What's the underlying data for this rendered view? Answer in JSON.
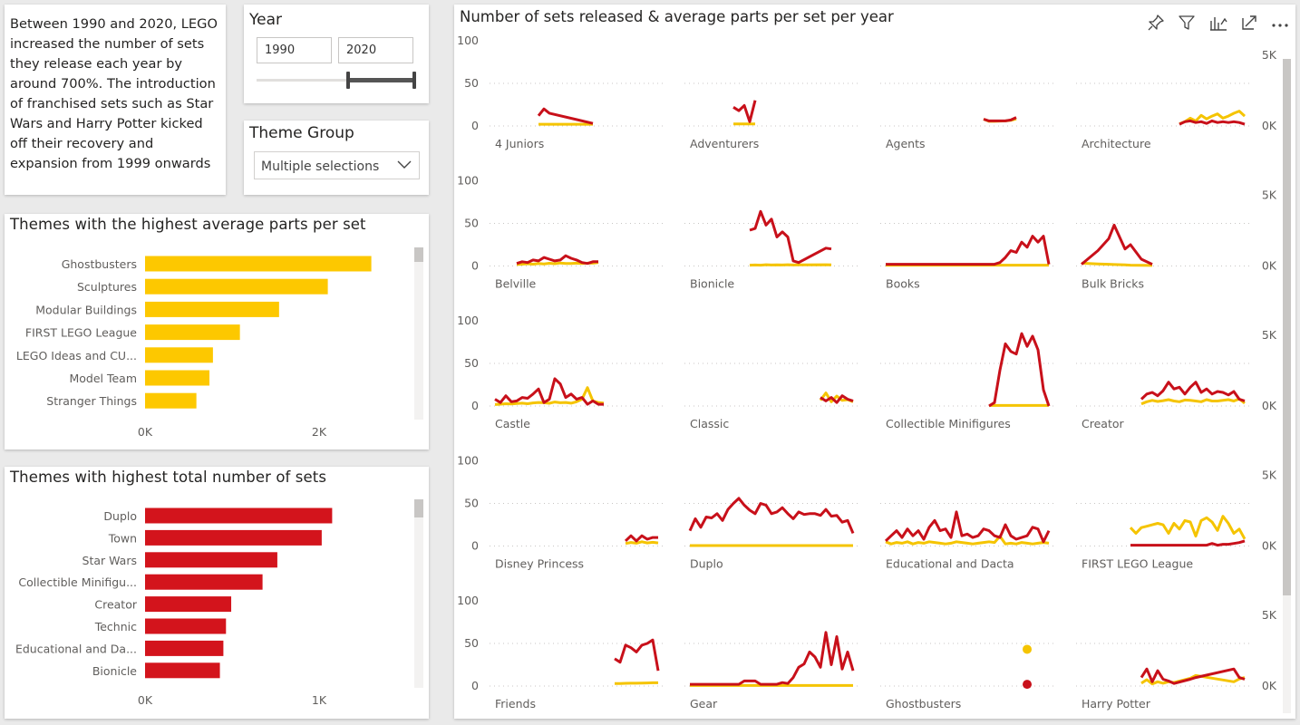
{
  "textbox": {
    "text": "Between 1990 and 2020, LEGO increased the number of sets they release each year by around 700%. The introduction of franchised sets such as Star Wars and Harry Potter kicked off their recovery and expansion from 1999 onwards"
  },
  "year_slicer": {
    "title": "Year",
    "start": "1990",
    "end": "2020"
  },
  "theme_slicer": {
    "title": "Theme Group",
    "value": "Multiple selections",
    "icon": "chevron-down-icon"
  },
  "visual_header_icons": [
    "pin-icon",
    "filter-icon",
    "visual-options-icon",
    "focus-mode-icon",
    "more-options-icon"
  ],
  "colors": {
    "sets": "#c8101a",
    "parts": "#f5c400",
    "bar_parts": "#fdc800",
    "bar_sets": "#d3141c"
  },
  "chart_data": [
    {
      "type": "bar",
      "orientation": "horizontal",
      "title": "Themes with the highest average parts per set",
      "categories": [
        "Ghostbusters",
        "Sculptures",
        "Modular Buildings",
        "FIRST LEGO League",
        "LEGO Ideas and CU...",
        "Model Team",
        "Stranger Things"
      ],
      "values": [
        2600,
        2100,
        1540,
        1090,
        780,
        740,
        590
      ],
      "xlim": [
        0,
        3000
      ],
      "ticks": [
        {
          "v": 0,
          "label": "0K"
        },
        {
          "v": 2000,
          "label": "2K"
        }
      ],
      "color": "#fdc800"
    },
    {
      "type": "bar",
      "orientation": "horizontal",
      "title": "Themes with highest total number of sets",
      "categories": [
        "Duplo",
        "Town",
        "Star Wars",
        "Collectible Minifigu...",
        "Creator",
        "Technic",
        "Educational and Da...",
        "Bionicle"
      ],
      "values": [
        1075,
        1015,
        760,
        675,
        495,
        465,
        450,
        430
      ],
      "xlim": [
        0,
        1500
      ],
      "ticks": [
        {
          "v": 0,
          "label": "0K"
        },
        {
          "v": 1000,
          "label": "1K"
        }
      ],
      "color": "#d3141c"
    },
    {
      "type": "line",
      "small_multiples": true,
      "title": "Number of sets released & average parts per set per year",
      "xlim": [
        1990,
        2020
      ],
      "y_left": {
        "range": [
          0,
          100
        ],
        "ticks": [
          "100",
          "50",
          "0"
        ]
      },
      "y_right": {
        "range": [
          0,
          5000
        ],
        "ticks": [
          "5K",
          "0K"
        ]
      },
      "series_colors": {
        "sets": "#c8101a",
        "parts": "#f5c400"
      },
      "panels": [
        {
          "name": "4 Juniors",
          "x": [
            1998,
            1999,
            2000,
            2008
          ],
          "sets": [
            12,
            20,
            15,
            3
          ],
          "parts": [
            120,
            120,
            120,
            120
          ]
        },
        {
          "name": "Adventurers",
          "x": [
            1998,
            1999,
            2000,
            2001,
            2002
          ],
          "sets": [
            22,
            18,
            24,
            5,
            30
          ],
          "parts": [
            150,
            150,
            150,
            150,
            150
          ]
        },
        {
          "name": "Agents",
          "x": [
            2008,
            2009,
            2010,
            2012,
            2013,
            2014
          ],
          "sets": [
            8,
            6,
            6,
            6,
            7,
            10
          ],
          "parts": [
            480,
            330,
            330,
            360,
            400,
            500
          ]
        },
        {
          "name": "Architecture",
          "x": [
            2008,
            2009,
            2010,
            2011,
            2012,
            2013,
            2014,
            2015,
            2016,
            2017,
            2018,
            2019,
            2020
          ],
          "sets": [
            2,
            5,
            6,
            4,
            5,
            3,
            6,
            4,
            5,
            4,
            5,
            4,
            2
          ],
          "parts": [
            150,
            300,
            550,
            350,
            750,
            500,
            700,
            850,
            550,
            700,
            900,
            1050,
            700
          ]
        },
        {
          "name": "Belville",
          "x": [
            1994,
            1995,
            1996,
            1997,
            1998,
            1999,
            2000,
            2001,
            2002,
            2003,
            2004,
            2005,
            2006,
            2007,
            2008,
            2009
          ],
          "sets": [
            3,
            5,
            4,
            7,
            6,
            10,
            8,
            6,
            7,
            12,
            9,
            7,
            4,
            3,
            5,
            5
          ],
          "parts": [
            100,
            130,
            160,
            130,
            170,
            150,
            190,
            160,
            210,
            170,
            180,
            200,
            170,
            200,
            200,
            250
          ]
        },
        {
          "name": "Bionicle",
          "x": [
            2001,
            2002,
            2003,
            2004,
            2005,
            2006,
            2007,
            2008,
            2009,
            2010,
            2015,
            2016
          ],
          "sets": [
            42,
            44,
            64,
            48,
            55,
            34,
            40,
            34,
            6,
            4,
            21,
            20
          ],
          "parts": [
            60,
            70,
            60,
            90,
            70,
            80,
            70,
            90,
            70,
            80,
            90,
            80
          ]
        },
        {
          "name": "Books",
          "x": [
            1990,
            1995,
            2000,
            2005,
            2008,
            2009,
            2010,
            2011,
            2012,
            2013,
            2014,
            2015,
            2016,
            2017,
            2018,
            2019,
            2020
          ],
          "sets": [
            2,
            2,
            2,
            2,
            2,
            2,
            2,
            4,
            10,
            18,
            16,
            28,
            22,
            35,
            28,
            35,
            2
          ],
          "parts": [
            60,
            60,
            60,
            60,
            60,
            60,
            60,
            60,
            60,
            60,
            60,
            60,
            60,
            60,
            60,
            60,
            60
          ]
        },
        {
          "name": "Bulk Bricks",
          "x": [
            1990,
            1993,
            1995,
            1996,
            1998,
            1999,
            2001,
            2003
          ],
          "sets": [
            2,
            18,
            32,
            48,
            20,
            25,
            8,
            2
          ],
          "parts": [
            200,
            150,
            120,
            100,
            80,
            60,
            50,
            40
          ]
        },
        {
          "name": "Castle",
          "x": [
            1990,
            1991,
            1992,
            1993,
            1994,
            1995,
            1996,
            1997,
            1998,
            1999,
            2000,
            2001,
            2002,
            2003,
            2004,
            2005,
            2006,
            2007,
            2008,
            2009,
            2010
          ],
          "sets": [
            8,
            4,
            12,
            5,
            6,
            10,
            9,
            14,
            20,
            4,
            8,
            32,
            26,
            10,
            14,
            8,
            10,
            2,
            6,
            2,
            2
          ],
          "parts": [
            100,
            130,
            160,
            140,
            180,
            200,
            160,
            220,
            250,
            230,
            190,
            280,
            230,
            250,
            200,
            300,
            480,
            1300,
            350,
            250,
            200
          ]
        },
        {
          "name": "Classic",
          "x": [
            2014,
            2015,
            2016,
            2017,
            2018,
            2019,
            2020
          ],
          "sets": [
            10,
            6,
            10,
            4,
            12,
            8,
            6
          ],
          "parts": [
            400,
            920,
            300,
            700,
            400,
            450,
            300
          ]
        },
        {
          "name": "Collectible Minifigures",
          "x": [
            2009,
            2010,
            2011,
            2012,
            2013,
            2014,
            2015,
            2016,
            2017,
            2018,
            2019,
            2020
          ],
          "sets": [
            0,
            4,
            42,
            73,
            64,
            61,
            85,
            70,
            82,
            66,
            19,
            0
          ],
          "parts": [
            40,
            40,
            40,
            40,
            40,
            40,
            40,
            40,
            40,
            40,
            40,
            40
          ]
        },
        {
          "name": "Creator",
          "x": [
            2001,
            2002,
            2003,
            2004,
            2005,
            2006,
            2007,
            2008,
            2009,
            2010,
            2011,
            2012,
            2013,
            2014,
            2015,
            2016,
            2017,
            2018,
            2019,
            2020
          ],
          "sets": [
            8,
            14,
            16,
            12,
            18,
            28,
            20,
            22,
            14,
            22,
            28,
            16,
            20,
            14,
            17,
            16,
            13,
            17,
            8,
            6
          ],
          "parts": [
            150,
            300,
            400,
            320,
            380,
            450,
            350,
            300,
            420,
            400,
            350,
            300,
            450,
            350,
            350,
            400,
            450,
            350,
            500,
            200
          ]
        },
        {
          "name": "Disney Princess",
          "x": [
            2014,
            2015,
            2016,
            2017,
            2018,
            2019,
            2020
          ],
          "sets": [
            6,
            12,
            6,
            12,
            8,
            10,
            10
          ],
          "parts": [
            180,
            250,
            200,
            300,
            220,
            260,
            220
          ]
        },
        {
          "name": "Duplo",
          "x": [
            1990,
            1991,
            1992,
            1993,
            1994,
            1995,
            1996,
            1997,
            1998,
            1999,
            2000,
            2001,
            2002,
            2003,
            2004,
            2005,
            2006,
            2007,
            2008,
            2009,
            2010,
            2011,
            2012,
            2013,
            2014,
            2015,
            2016,
            2017,
            2018,
            2019,
            2020
          ],
          "sets": [
            18,
            32,
            22,
            34,
            33,
            38,
            30,
            43,
            50,
            56,
            48,
            42,
            38,
            50,
            48,
            38,
            40,
            45,
            38,
            32,
            40,
            37,
            38,
            38,
            36,
            43,
            35,
            36,
            28,
            30,
            15
          ],
          "parts": [
            30,
            30,
            30,
            30,
            30,
            30,
            30,
            30,
            30,
            30,
            30,
            30,
            30,
            30,
            30,
            30,
            30,
            30,
            30,
            30,
            30,
            30,
            30,
            30,
            30,
            30,
            30,
            30,
            30,
            30,
            30
          ]
        },
        {
          "name": "Educational and Dacta",
          "x": [
            1990,
            1991,
            1992,
            1993,
            1994,
            1995,
            1996,
            1997,
            1998,
            1999,
            2000,
            2001,
            2002,
            2003,
            2004,
            2005,
            2006,
            2007,
            2008,
            2009,
            2010,
            2011,
            2012,
            2013,
            2014,
            2015,
            2016,
            2017,
            2018,
            2019,
            2020
          ],
          "sets": [
            6,
            12,
            18,
            10,
            20,
            12,
            18,
            8,
            22,
            30,
            18,
            20,
            10,
            40,
            12,
            14,
            10,
            12,
            20,
            18,
            12,
            10,
            25,
            12,
            8,
            10,
            12,
            22,
            20,
            5,
            18
          ],
          "parts": [
            300,
            150,
            250,
            200,
            300,
            150,
            250,
            200,
            300,
            250,
            200,
            150,
            200,
            300,
            250,
            200,
            150,
            200,
            250,
            300,
            250,
            700,
            150,
            200,
            150,
            250,
            200,
            150,
            200,
            250,
            200
          ]
        },
        {
          "name": "FIRST LEGO League",
          "x": [
            1999,
            2000,
            2001,
            2002,
            2003,
            2004,
            2005,
            2006,
            2007,
            2008,
            2009,
            2010,
            2011,
            2012,
            2013,
            2014,
            2015,
            2016,
            2017,
            2018,
            2019,
            2020
          ],
          "sets": [
            1,
            1,
            1,
            1,
            1,
            1,
            1,
            1,
            1,
            1,
            1,
            1,
            1,
            1,
            1,
            3,
            1,
            2,
            2,
            3,
            4,
            6
          ],
          "parts": [
            1300,
            900,
            1300,
            1400,
            1500,
            1600,
            1500,
            900,
            1600,
            1200,
            1800,
            1700,
            700,
            1800,
            2000,
            1700,
            1100,
            2100,
            1600,
            900,
            1200,
            500
          ]
        },
        {
          "name": "Friends",
          "x": [
            2012,
            2013,
            2014,
            2015,
            2016,
            2017,
            2018,
            2019,
            2020
          ],
          "sets": [
            32,
            28,
            48,
            45,
            40,
            48,
            50,
            54,
            18
          ],
          "parts": [
            170,
            170,
            190,
            200,
            200,
            210,
            220,
            230,
            230
          ]
        },
        {
          "name": "Gear",
          "x": [
            1990,
            1999,
            2000,
            2001,
            2002,
            2003,
            2004,
            2005,
            2006,
            2007,
            2008,
            2009,
            2010,
            2011,
            2012,
            2013,
            2014,
            2015,
            2016,
            2017,
            2018,
            2019,
            2020
          ],
          "sets": [
            2,
            2,
            6,
            6,
            6,
            2,
            2,
            2,
            2,
            4,
            3,
            10,
            22,
            26,
            40,
            34,
            22,
            63,
            25,
            58,
            20,
            40,
            18
          ],
          "parts": [
            40,
            40,
            40,
            40,
            40,
            40,
            40,
            40,
            40,
            40,
            40,
            40,
            40,
            40,
            40,
            40,
            40,
            40,
            40,
            40,
            40,
            40,
            40
          ]
        },
        {
          "name": "Ghostbusters",
          "x": [
            2016
          ],
          "sets": [
            2
          ],
          "parts": [
            2600
          ]
        },
        {
          "name": "Harry Potter",
          "x": [
            2001,
            2002,
            2003,
            2004,
            2005,
            2006,
            2007,
            2010,
            2011,
            2018,
            2019,
            2020
          ],
          "sets": [
            10,
            20,
            5,
            18,
            8,
            6,
            3,
            8,
            10,
            20,
            10,
            8
          ],
          "parts": [
            200,
            450,
            150,
            300,
            200,
            300,
            250,
            550,
            750,
            300,
            500,
            600
          ]
        }
      ]
    }
  ]
}
